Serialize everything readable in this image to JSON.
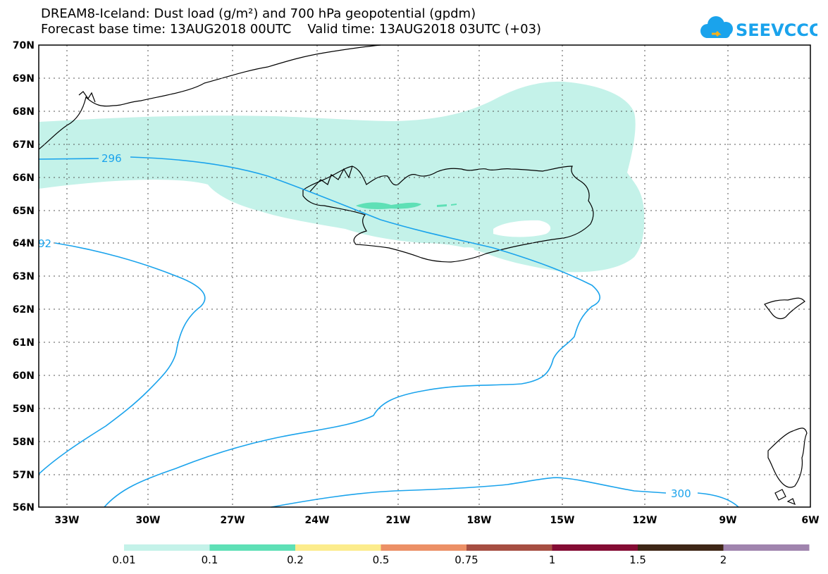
{
  "title_line1": "DREAM8-Iceland: Dust load (g/m²) and 700 hPa geopotential (gpdm)",
  "title_line2": "Forecast base time: 13AUG2018 00UTC    Valid time: 13AUG2018 03UTC (+03)",
  "logo_text": "SEEVCCC",
  "map": {
    "lon_range": [
      -34.5,
      -6
    ],
    "lat_range": [
      56,
      70
    ],
    "lon_ticks": [
      "33W",
      "30W",
      "27W",
      "24W",
      "21W",
      "18W",
      "15W",
      "12W",
      "9W",
      "6W"
    ],
    "lat_ticks": [
      "70N",
      "69N",
      "68N",
      "67N",
      "66N",
      "65N",
      "64N",
      "63N",
      "62N",
      "61N",
      "60N",
      "59N",
      "58N",
      "57N",
      "56N"
    ],
    "contour_labels": [
      "296",
      "92",
      "300"
    ],
    "contour_color": "#1aa3ec"
  },
  "colorbar": {
    "labels": [
      "0.01",
      "0.1",
      "0.2",
      "0.5",
      "0.75",
      "1",
      "1.5",
      "2"
    ],
    "colors": [
      "#c4f2e9",
      "#5ee0b6",
      "#fcec8c",
      "#ec9066",
      "#a64e42",
      "#840c34",
      "#3e2616",
      "#a084ae"
    ]
  }
}
